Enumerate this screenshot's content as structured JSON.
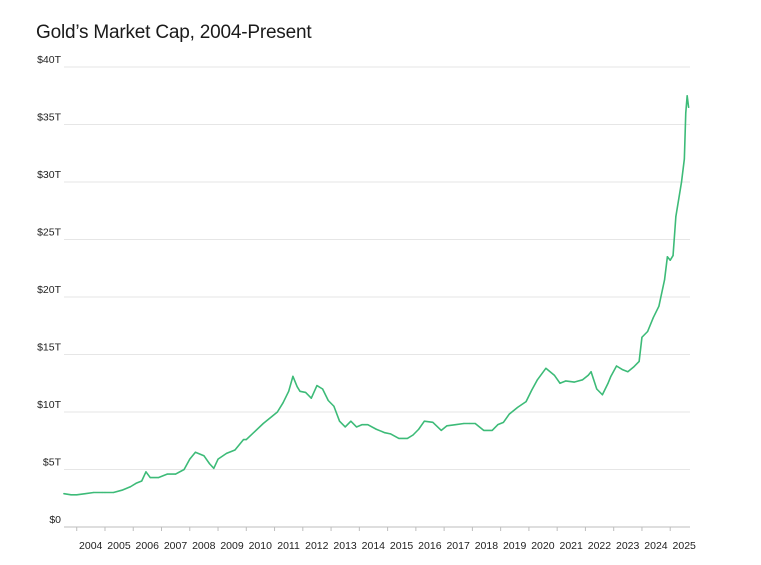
{
  "chart_data": {
    "type": "line",
    "title": "Gold’s Market Cap, 2004-Present",
    "xlabel": "",
    "ylabel": "",
    "xlim": [
      2003.55,
      2025.7
    ],
    "ylim": [
      0,
      40
    ],
    "y_tick_values": [
      0,
      5,
      10,
      15,
      20,
      25,
      30,
      35,
      40
    ],
    "y_tick_labels": [
      "$0",
      "$5T",
      "$10T",
      "$15T",
      "$20T",
      "$25T",
      "$30T",
      "$35T",
      "$40T"
    ],
    "x_tick_values": [
      2004,
      2005,
      2006,
      2007,
      2008,
      2009,
      2010,
      2011,
      2012,
      2013,
      2014,
      2015,
      2016,
      2017,
      2018,
      2019,
      2020,
      2021,
      2022,
      2023,
      2024,
      2025
    ],
    "x_tick_labels": [
      "2004",
      "2005",
      "2006",
      "2007",
      "2008",
      "2009",
      "2010",
      "2011",
      "2012",
      "2013",
      "2014",
      "2015",
      "2016",
      "2017",
      "2018",
      "2019",
      "2020",
      "2021",
      "2022",
      "2023",
      "2024",
      "2025"
    ],
    "grid": true,
    "legend": "none",
    "line_color": "#3dbb78",
    "series": [
      {
        "x": [
          2003.55,
          2003.8,
          2004.0,
          2004.3,
          2004.6,
          2004.9,
          2005.0,
          2005.3,
          2005.6,
          2005.9,
          2006.1,
          2006.3,
          2006.45,
          2006.6,
          2006.9,
          2007.2,
          2007.5,
          2007.8,
          2008.0,
          2008.2,
          2008.5,
          2008.7,
          2008.85,
          2009.0,
          2009.3,
          2009.6,
          2009.9,
          2010.0,
          2010.3,
          2010.6,
          2010.9,
          2011.1,
          2011.3,
          2011.5,
          2011.65,
          2011.8,
          2011.9,
          2012.1,
          2012.3,
          2012.5,
          2012.7,
          2012.9,
          2013.1,
          2013.3,
          2013.5,
          2013.7,
          2013.9,
          2014.1,
          2014.3,
          2014.6,
          2014.9,
          2015.1,
          2015.4,
          2015.7,
          2015.9,
          2016.1,
          2016.3,
          2016.6,
          2016.9,
          2017.1,
          2017.4,
          2017.7,
          2017.9,
          2018.1,
          2018.4,
          2018.7,
          2018.9,
          2019.1,
          2019.3,
          2019.6,
          2019.9,
          2020.1,
          2020.3,
          2020.6,
          2020.9,
          2021.1,
          2021.3,
          2021.6,
          2021.9,
          2022.1,
          2022.2,
          2022.4,
          2022.6,
          2022.8,
          2022.9,
          2023.1,
          2023.3,
          2023.5,
          2023.7,
          2023.9,
          2024.0,
          2024.2,
          2024.4,
          2024.6,
          2024.8,
          2024.9,
          2025.0,
          2025.1,
          2025.2,
          2025.3,
          2025.4,
          2025.5,
          2025.55,
          2025.6,
          2025.65
        ],
        "values": [
          2.9,
          2.8,
          2.8,
          2.9,
          3.0,
          3.0,
          3.0,
          3.0,
          3.2,
          3.5,
          3.8,
          4.0,
          4.8,
          4.3,
          4.3,
          4.6,
          4.6,
          5.0,
          5.9,
          6.5,
          6.2,
          5.5,
          5.1,
          5.9,
          6.4,
          6.7,
          7.6,
          7.6,
          8.3,
          9.0,
          9.6,
          10.0,
          10.8,
          11.8,
          13.1,
          12.2,
          11.8,
          11.7,
          11.2,
          12.3,
          12.0,
          11.0,
          10.5,
          9.2,
          8.7,
          9.2,
          8.7,
          8.9,
          8.9,
          8.5,
          8.2,
          8.1,
          7.7,
          7.7,
          8.0,
          8.5,
          9.2,
          9.1,
          8.4,
          8.8,
          8.9,
          9.0,
          9.0,
          9.0,
          8.4,
          8.4,
          8.9,
          9.1,
          9.8,
          10.4,
          10.9,
          11.9,
          12.8,
          13.8,
          13.2,
          12.5,
          12.7,
          12.6,
          12.8,
          13.2,
          13.5,
          12.0,
          11.5,
          12.5,
          13.1,
          14.0,
          13.7,
          13.5,
          13.9,
          14.4,
          16.5,
          17.0,
          18.2,
          19.2,
          21.5,
          23.5,
          23.2,
          23.6,
          27.0,
          28.5,
          30.0,
          32.0,
          36.0,
          37.5,
          36.5
        ]
      }
    ]
  }
}
